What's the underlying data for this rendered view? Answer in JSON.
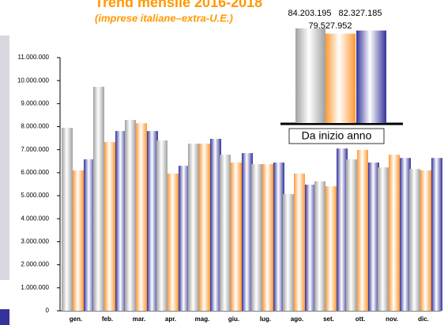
{
  "chart_data": [
    {
      "type": "bar",
      "title": "Trend mensile 2016-2018",
      "subtitle": "(imprese italiane–extra-U.E.)",
      "categories": [
        "gen.",
        "feb.",
        "mar.",
        "apr.",
        "mag.",
        "giu.",
        "lug.",
        "ago.",
        "set.",
        "ott.",
        "nov.",
        "dic."
      ],
      "series": [
        {
          "color": "#a0a0a0",
          "values": [
            7950000,
            9730000,
            8290000,
            7400000,
            7260000,
            6780000,
            6370000,
            5070000,
            5620000,
            6580000,
            6230000,
            6160000
          ]
        },
        {
          "color": "#ff9933",
          "values": [
            6100000,
            7330000,
            8150000,
            5960000,
            7260000,
            6440000,
            6370000,
            5960000,
            5410000,
            6990000,
            6780000,
            6100000
          ]
        },
        {
          "color": "#333399",
          "values": [
            6580000,
            7810000,
            7810000,
            6300000,
            7470000,
            6850000,
            6440000,
            5480000,
            7050000,
            6440000,
            6640000,
            6640000
          ]
        }
      ],
      "ylim": [
        0,
        11000000
      ],
      "yticks": [
        0,
        {
          "value": 1000000,
          "label": "1.000.000"
        },
        {
          "value": 2000000,
          "label": "2.000.000"
        },
        {
          "value": 3000000,
          "label": "3.000.000"
        },
        {
          "value": 4000000,
          "label": "4.000.000"
        },
        {
          "value": 5000000,
          "label": "5.000.000"
        },
        {
          "value": 6000000,
          "label": "6.000.000"
        },
        {
          "value": 7000000,
          "label": "7.000.000"
        },
        {
          "value": 8000000,
          "label": "8.000.000"
        },
        {
          "value": 9000000,
          "label": "9.000.000"
        },
        {
          "value": 10000000,
          "label": "10.000.000"
        },
        {
          "value": 11000000,
          "label": "11.000.000"
        }
      ],
      "grid": false
    },
    {
      "type": "bar",
      "title": "Da inizio anno",
      "series": [
        {
          "color": "#a0a0a0",
          "values": [
            84203195
          ],
          "value_labels": [
            "84.203.195"
          ]
        },
        {
          "color": "#ff9933",
          "values": [
            79527952
          ],
          "value_labels": [
            "79.527.952"
          ]
        },
        {
          "color": "#333399",
          "values": [
            82327185
          ],
          "value_labels": [
            "82.327.185"
          ]
        }
      ],
      "ylim": [
        0,
        84203195
      ]
    }
  ]
}
